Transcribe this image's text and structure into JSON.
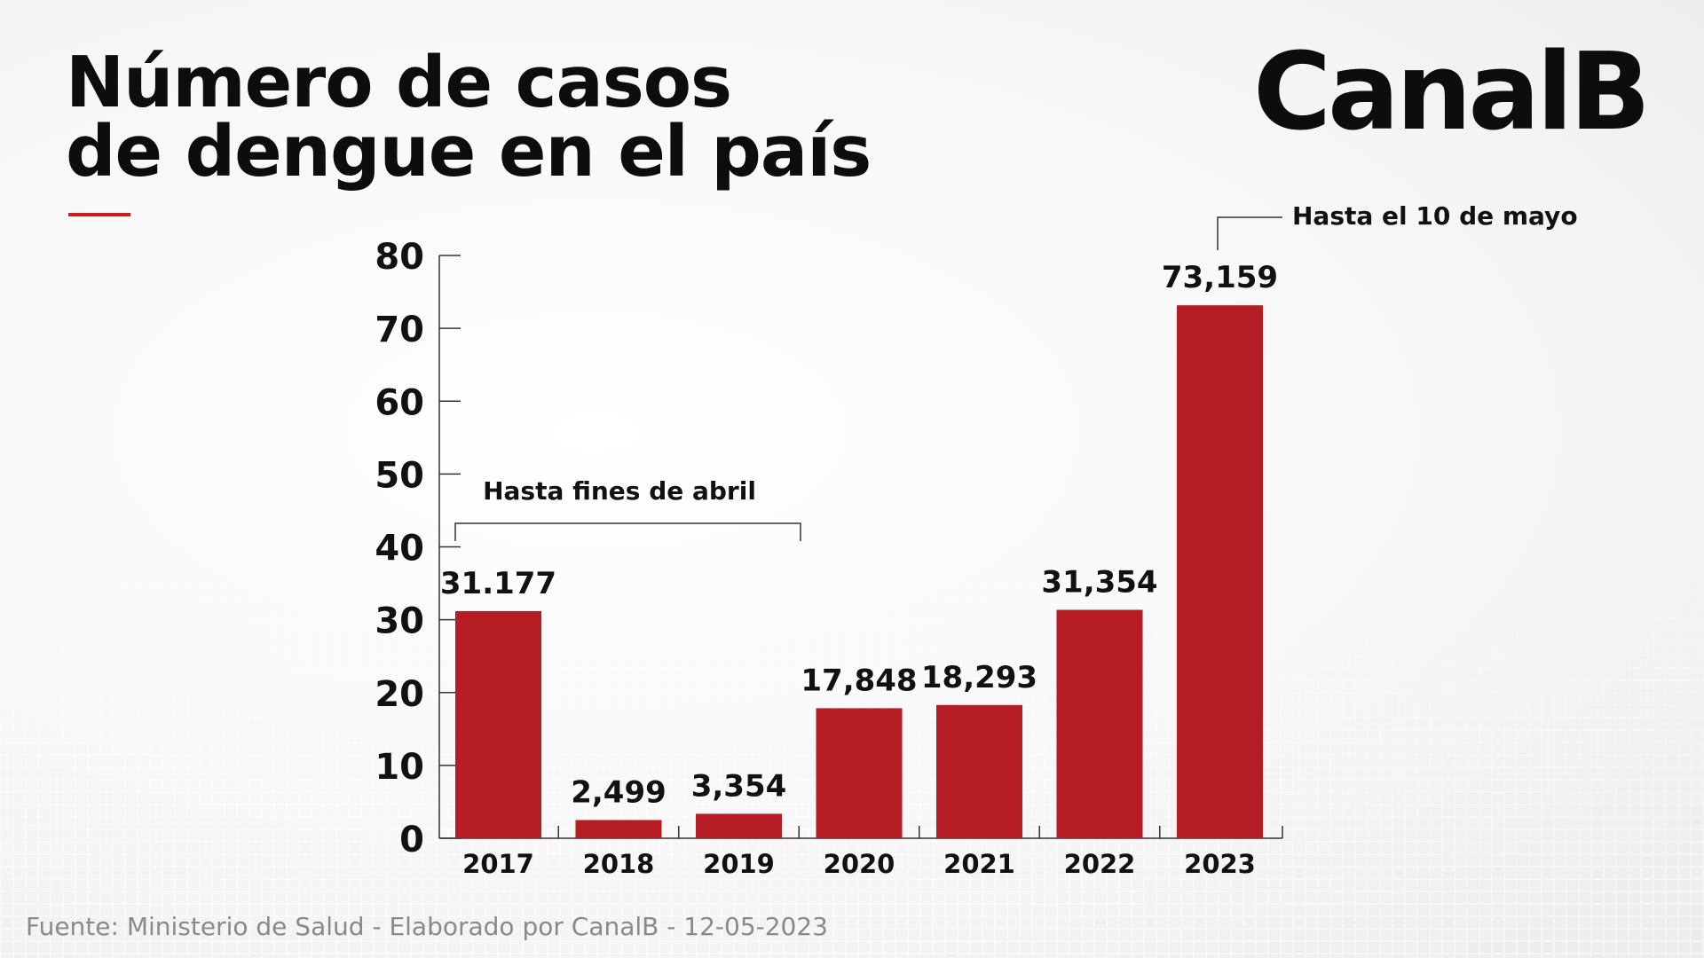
{
  "title": {
    "line1": "Número de casos",
    "line2": "de dengue en el país"
  },
  "logo": "CanalB",
  "footer": "Fuente: Ministerio de Salud - Elaborado por CanalB - 12-05-2023",
  "colors": {
    "bar": "#b51c24",
    "accent": "#cc1f24",
    "text": "#111111",
    "footer": "#8a8a8a"
  },
  "chart_data": {
    "type": "bar",
    "categories": [
      "2017",
      "2018",
      "2019",
      "2020",
      "2021",
      "2022",
      "2023"
    ],
    "values": [
      31.177,
      2.499,
      3.354,
      17.848,
      18.293,
      31.354,
      73.159
    ],
    "data_labels": [
      "31.177",
      "2,499",
      "3,354",
      "17,848",
      "18,293",
      "31,354",
      "73,159"
    ],
    "ylim": [
      0,
      80
    ],
    "yticks": [
      0,
      10,
      20,
      30,
      40,
      50,
      60,
      70,
      80
    ],
    "grid": false,
    "annotations": [
      {
        "text": "Hasta fines de abril",
        "span": [
          "2017",
          "2019"
        ]
      },
      {
        "text": "Hasta el 10 de mayo",
        "target": "2023"
      }
    ]
  }
}
